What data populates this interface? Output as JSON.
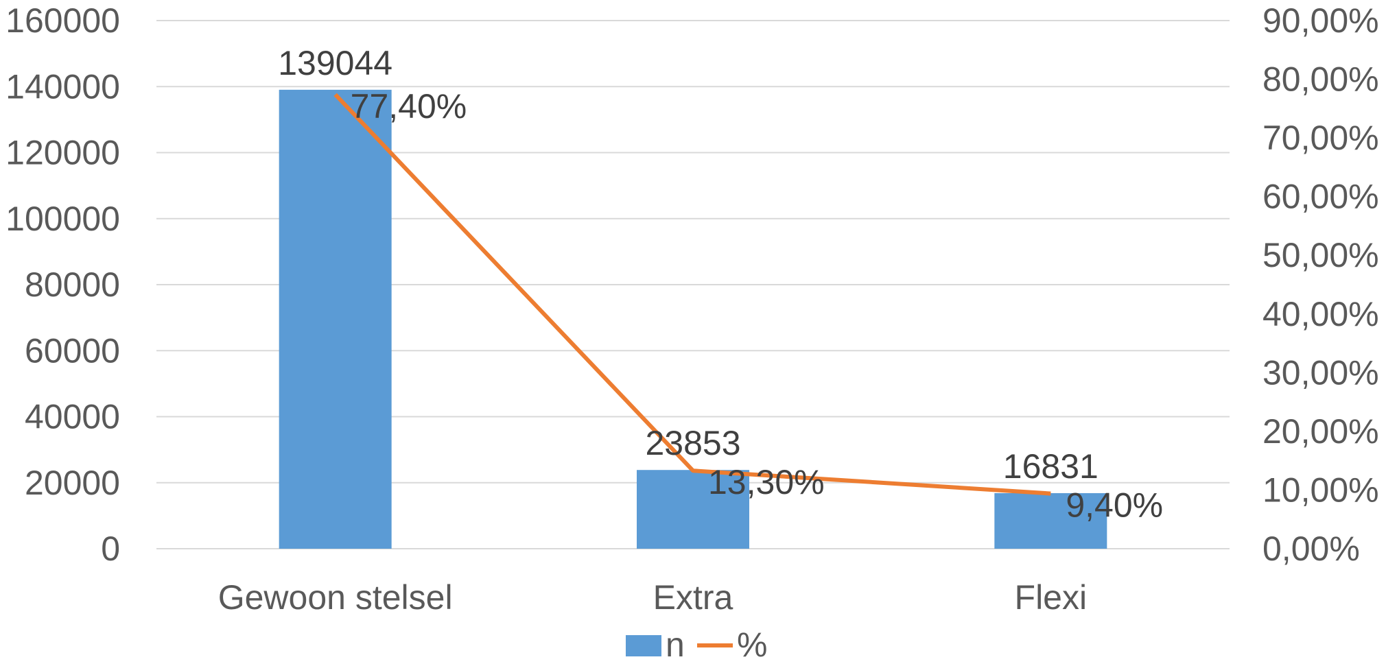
{
  "chart_data": {
    "type": "bar",
    "title": "",
    "categories": [
      "Gewoon stelsel",
      "Extra",
      "Flexi"
    ],
    "series": [
      {
        "name": "n",
        "type": "bar",
        "axis": "left",
        "color": "#5b9bd5",
        "values": [
          139044,
          23853,
          16831
        ],
        "labels": [
          "139044",
          "23853",
          "16831"
        ]
      },
      {
        "name": "%",
        "type": "line",
        "axis": "right",
        "color": "#ed7d31",
        "values": [
          77.4,
          13.3,
          9.4
        ],
        "labels": [
          "77,40%",
          "13,30%",
          "9,40%"
        ]
      }
    ],
    "y_left": {
      "range": [
        0,
        160000
      ],
      "ticks": [
        0,
        20000,
        40000,
        60000,
        80000,
        100000,
        120000,
        140000,
        160000
      ],
      "tick_labels": [
        "0",
        "20000",
        "40000",
        "60000",
        "80000",
        "100000",
        "120000",
        "140000",
        "160000"
      ]
    },
    "y_right": {
      "range": [
        0,
        90
      ],
      "ticks": [
        0,
        10,
        20,
        30,
        40,
        50,
        60,
        70,
        80,
        90
      ],
      "tick_labels": [
        "0,00%",
        "10,00%",
        "20,00%",
        "30,00%",
        "40,00%",
        "50,00%",
        "60,00%",
        "70,00%",
        "80,00%",
        "90,00%"
      ]
    },
    "grid": true,
    "legend": {
      "position": "bottom",
      "entries": [
        "n",
        "%"
      ]
    }
  }
}
